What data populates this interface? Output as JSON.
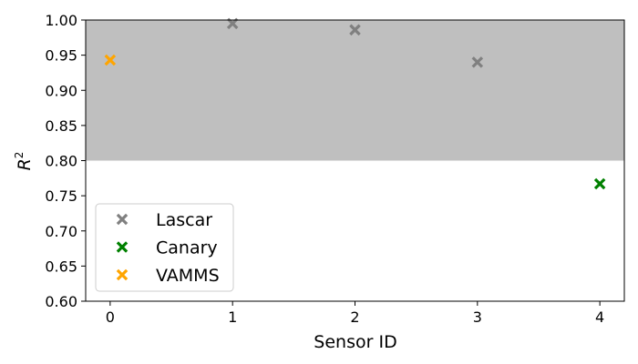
{
  "chart_data": {
    "type": "scatter",
    "title": "",
    "xlabel": "Sensor ID",
    "ylabel_base": "R",
    "ylabel_sup": "2",
    "xlim": [
      -0.2,
      4.2
    ],
    "ylim": [
      0.6,
      1.0
    ],
    "xticks": [
      0,
      1,
      2,
      3,
      4
    ],
    "xtick_labels": [
      "0",
      "1",
      "2",
      "3",
      "4"
    ],
    "yticks": [
      0.6,
      0.65,
      0.7,
      0.75,
      0.8,
      0.85,
      0.9,
      0.95,
      1.0
    ],
    "ytick_labels": [
      "0.60",
      "0.65",
      "0.70",
      "0.75",
      "0.80",
      "0.85",
      "0.90",
      "0.95",
      "1.00"
    ],
    "shaded_region": {
      "y_from": 0.8,
      "y_to": 1.0,
      "color": "#bfbfbf"
    },
    "grid": false,
    "legend_position": "lower-left",
    "marker": "X",
    "series": [
      {
        "name": "Lascar",
        "color": "#808080",
        "points": [
          {
            "x": 1,
            "y": 0.995
          },
          {
            "x": 2,
            "y": 0.986
          },
          {
            "x": 3,
            "y": 0.94
          }
        ]
      },
      {
        "name": "Canary",
        "color": "#008000",
        "points": [
          {
            "x": 4,
            "y": 0.767
          }
        ]
      },
      {
        "name": "VAMMS",
        "color": "#ffa500",
        "points": [
          {
            "x": 0,
            "y": 0.943
          }
        ]
      }
    ]
  }
}
